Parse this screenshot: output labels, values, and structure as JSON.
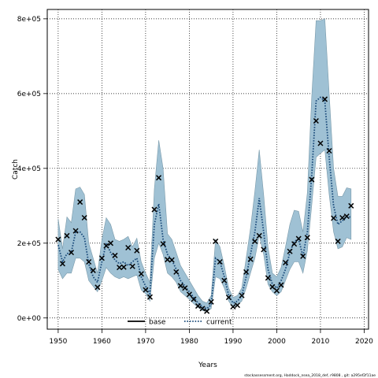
{
  "chart_data": {
    "type": "line",
    "xlabel": "Years",
    "ylabel": "Catch",
    "xlim": [
      1947.5,
      2021
    ],
    "ylim": [
      -30000,
      825000
    ],
    "x_ticks": [
      1950,
      1960,
      1970,
      1980,
      1990,
      2000,
      2010,
      2020
    ],
    "y_ticks": [
      0,
      200000,
      400000,
      600000,
      800000
    ],
    "y_tick_labels": [
      "0e+00",
      "2e+05",
      "4e+05",
      "6e+05",
      "8e+05"
    ],
    "grid": true,
    "legend": {
      "placement": "bottom-center",
      "entries": [
        {
          "label": "base",
          "style": "solid",
          "color": "#000000"
        },
        {
          "label": "current",
          "style": "dotted",
          "color": "#1a4a7a"
        }
      ]
    },
    "colors": {
      "band": "#9fc1d4",
      "band_edge": "#7a9aaa",
      "current_line": "#1a4a7a",
      "observed": "#000000"
    },
    "footnote": "stockassessment.org, Haddock_nsea_2018_def, r9808 , git: a295ef2f11ae",
    "years": [
      1950,
      1951,
      1952,
      1953,
      1954,
      1955,
      1956,
      1957,
      1958,
      1959,
      1960,
      1961,
      1962,
      1963,
      1964,
      1965,
      1966,
      1967,
      1968,
      1969,
      1970,
      1971,
      1972,
      1973,
      1974,
      1975,
      1976,
      1977,
      1978,
      1979,
      1980,
      1981,
      1982,
      1983,
      1984,
      1985,
      1986,
      1987,
      1988,
      1989,
      1990,
      1991,
      1992,
      1993,
      1994,
      1995,
      1996,
      1997,
      1998,
      1999,
      2000,
      2001,
      2002,
      2003,
      2004,
      2005,
      2006,
      2007,
      2008,
      2009,
      2010,
      2011,
      2012,
      2013,
      2014,
      2015,
      2016,
      2017
    ],
    "series": [
      {
        "name": "current",
        "values": [
          195000,
          150000,
          172000,
          175000,
          230000,
          230000,
          215000,
          145000,
          110000,
          95000,
          150000,
          200000,
          175000,
          155000,
          145000,
          150000,
          140000,
          150000,
          160000,
          110000,
          85000,
          65000,
          250000,
          305000,
          210000,
          170000,
          155000,
          130000,
          100000,
          85000,
          70000,
          55000,
          40000,
          30000,
          25000,
          35000,
          160000,
          150000,
          110000,
          60000,
          40000,
          45000,
          60000,
          110000,
          170000,
          230000,
          320000,
          230000,
          130000,
          90000,
          80000,
          100000,
          130000,
          175000,
          205000,
          210000,
          165000,
          230000,
          380000,
          580000,
          590000,
          580000,
          430000,
          300000,
          250000,
          260000,
          270000,
          270000
        ]
      },
      {
        "name": "band_upper",
        "values": [
          265000,
          185000,
          270000,
          255000,
          345000,
          350000,
          330000,
          200000,
          160000,
          120000,
          210000,
          268000,
          250000,
          210000,
          205000,
          210000,
          218000,
          190000,
          213000,
          150000,
          120000,
          95000,
          345000,
          475000,
          400000,
          225000,
          210000,
          175000,
          140000,
          120000,
          100000,
          80000,
          60000,
          45000,
          40000,
          60000,
          210000,
          190000,
          140000,
          80000,
          55000,
          60000,
          80000,
          160000,
          240000,
          340000,
          450000,
          330000,
          190000,
          120000,
          110000,
          135000,
          190000,
          250000,
          288000,
          285000,
          230000,
          335000,
          590000,
          795000,
          795000,
          800000,
          600000,
          400000,
          325000,
          325000,
          348000,
          345000
        ]
      },
      {
        "name": "band_lower",
        "values": [
          130000,
          105000,
          120000,
          120000,
          160000,
          160000,
          150000,
          100000,
          85000,
          70000,
          100000,
          135000,
          120000,
          110000,
          105000,
          110000,
          105000,
          110000,
          115000,
          75000,
          65000,
          45000,
          160000,
          200000,
          170000,
          120000,
          110000,
          95000,
          70000,
          60000,
          50000,
          38000,
          28000,
          20000,
          17000,
          25000,
          110000,
          105000,
          80000,
          45000,
          28000,
          35000,
          45000,
          80000,
          120000,
          160000,
          220000,
          170000,
          90000,
          70000,
          60000,
          70000,
          100000,
          130000,
          150000,
          150000,
          120000,
          180000,
          300000,
          430000,
          440000,
          450000,
          330000,
          230000,
          185000,
          190000,
          215000,
          210000
        ]
      },
      {
        "name": "observed",
        "values": [
          210000,
          145000,
          220000,
          175000,
          233000,
          310000,
          268000,
          150000,
          127000,
          82000,
          160000,
          193000,
          200000,
          167000,
          135000,
          136000,
          188000,
          138000,
          180000,
          118000,
          75000,
          56000,
          290000,
          375000,
          198000,
          156000,
          155000,
          123000,
          86000,
          80000,
          63000,
          50000,
          32000,
          25000,
          18000,
          43000,
          205000,
          150000,
          100000,
          55000,
          30000,
          34000,
          60000,
          123000,
          157000,
          205000,
          220000,
          183000,
          107000,
          83000,
          73000,
          88000,
          148000,
          178000,
          198000,
          212000,
          165000,
          215000,
          370000,
          527000,
          467000,
          585000,
          447000,
          267000,
          205000,
          268000,
          272000,
          300000
        ]
      }
    ]
  }
}
